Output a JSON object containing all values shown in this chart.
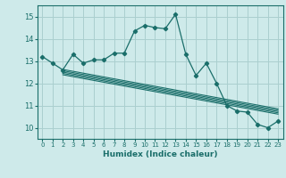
{
  "xlabel": "Humidex (Indice chaleur)",
  "xlim": [
    -0.5,
    23.5
  ],
  "ylim": [
    9.5,
    15.5
  ],
  "xticks": [
    0,
    1,
    2,
    3,
    4,
    5,
    6,
    7,
    8,
    9,
    10,
    11,
    12,
    13,
    14,
    15,
    16,
    17,
    18,
    19,
    20,
    21,
    22,
    23
  ],
  "yticks": [
    10,
    11,
    12,
    13,
    14,
    15
  ],
  "background_color": "#ceeaea",
  "grid_color": "#aacfcf",
  "line_color": "#1a6e6a",
  "main_x": [
    0,
    1,
    2,
    3,
    4,
    5,
    6,
    7,
    8,
    9,
    10,
    11,
    12,
    13,
    14,
    15,
    16,
    17,
    18,
    19,
    20,
    21,
    22,
    23
  ],
  "main_y": [
    13.2,
    12.9,
    12.6,
    13.3,
    12.9,
    13.05,
    13.05,
    13.35,
    13.35,
    14.35,
    14.6,
    14.5,
    14.45,
    15.1,
    13.3,
    12.35,
    12.9,
    12.0,
    11.0,
    10.75,
    10.7,
    10.15,
    10.0,
    10.3
  ],
  "diag_lines": [
    {
      "x": [
        2,
        23
      ],
      "y": [
        12.62,
        10.85
      ]
    },
    {
      "x": [
        2,
        23
      ],
      "y": [
        12.56,
        10.79
      ]
    },
    {
      "x": [
        2,
        23
      ],
      "y": [
        12.5,
        10.73
      ]
    },
    {
      "x": [
        2,
        23
      ],
      "y": [
        12.44,
        10.67
      ]
    },
    {
      "x": [
        2,
        23
      ],
      "y": [
        12.38,
        10.61
      ]
    }
  ]
}
